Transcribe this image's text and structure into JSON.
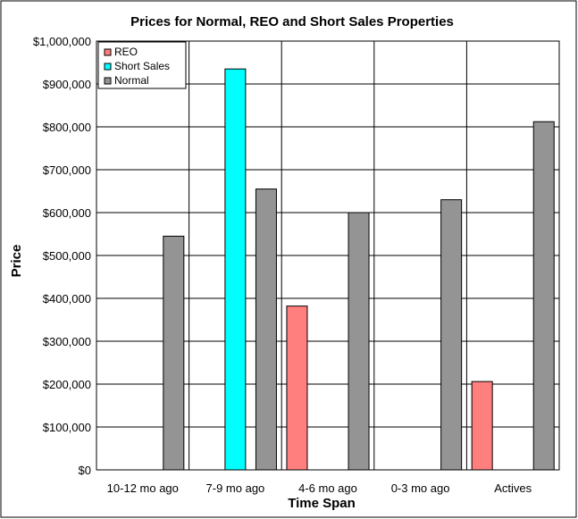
{
  "chart_data": {
    "type": "bar",
    "title": "Prices for Normal, REO and Short  Sales Properties",
    "xlabel": "Time Span",
    "ylabel": "Price",
    "categories": [
      "10-12 mo ago",
      "7-9 mo ago",
      "4-6 mo ago",
      "0-3 mo ago",
      "Actives"
    ],
    "ylim": [
      0,
      1000000
    ],
    "yticks": [
      0,
      100000,
      200000,
      300000,
      400000,
      500000,
      600000,
      700000,
      800000,
      900000,
      1000000
    ],
    "ytick_labels": [
      "$0",
      "$100,000",
      "$200,000",
      "$300,000",
      "$400,000",
      "$500,000",
      "$600,000",
      "$700,000",
      "$800,000",
      "$900,000",
      "$1,000,000"
    ],
    "grid": true,
    "legend_position": "top-left",
    "series": [
      {
        "name": "REO",
        "color": "#FF7F7F",
        "values": [
          null,
          null,
          382000,
          null,
          206000
        ]
      },
      {
        "name": "Short Sales",
        "color": "#00FFFF",
        "values": [
          null,
          935000,
          null,
          null,
          null
        ]
      },
      {
        "name": "Normal",
        "color": "#949494",
        "values": [
          545000,
          655000,
          600000,
          630000,
          812000
        ]
      }
    ]
  }
}
